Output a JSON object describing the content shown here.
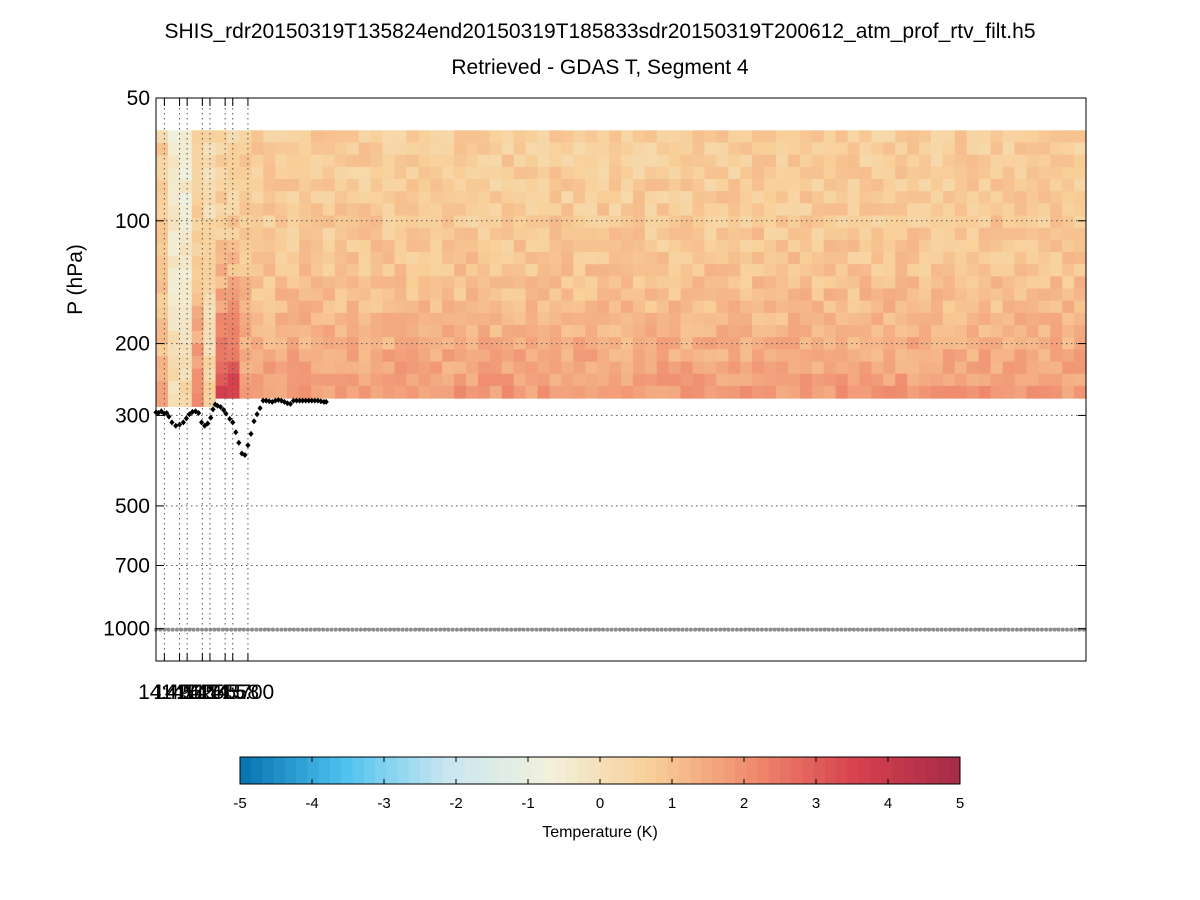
{
  "chart_data": {
    "type": "heatmap",
    "title": "SHIS_rdr20150319T135824end20150319T185833sdr20150319T200612_atm_prof_rtv_filt.h5",
    "subtitle": "Retrieved - GDAS T, Segment 4",
    "ylabel": "P (hPa)",
    "y_scale": "log",
    "y_reversed": true,
    "ylim": [
      50,
      1200
    ],
    "y_ticks": [
      50,
      100,
      200,
      300,
      500,
      700,
      1000
    ],
    "y_tick_labels": [
      "50",
      "100",
      "200",
      "300",
      "500",
      "700",
      "1000"
    ],
    "x_range_min": [
      887.9,
      1010.3
    ],
    "x_ticks_min": [
      889,
      891,
      892,
      894,
      895,
      897,
      898,
      900
    ],
    "x_tick_labels": [
      "14:49",
      "14:51",
      "14:52",
      "14:54",
      "14:55",
      "14:57",
      "14:58",
      "15:00"
    ],
    "grid": true,
    "colorbar": {
      "label": "Temperature (K)",
      "range": [
        -5,
        5
      ],
      "ticks": [
        -5,
        -4,
        -3,
        -2,
        -1,
        0,
        1,
        2,
        3,
        4,
        5
      ],
      "tick_labels": [
        "-5",
        "-4",
        "-3",
        "-2",
        "-1",
        "0",
        "1",
        "2",
        "3",
        "4",
        "5"
      ],
      "placement": "bottom",
      "colors": [
        "#0571b0",
        "#4dc1ee",
        "#c9e6f1",
        "#f1f1dc",
        "#f8cf98",
        "#ef8a6d",
        "#d6404e",
        "#a52b47"
      ]
    },
    "heatmap": {
      "pressure_top": 60,
      "pressure_levels_note": "field rows from 60 hPa to tropopause",
      "segments": [
        {
          "x_start_min": 887.9,
          "x_end_min": 889.6,
          "upper_k": 0.6,
          "lower_k": 1.4,
          "tropopause_hPa": 285
        },
        {
          "x_start_min": 889.6,
          "x_end_min": 892.0,
          "upper_k": -0.5,
          "lower_k": 0.3,
          "tropopause_hPa": 285
        },
        {
          "x_start_min": 892.0,
          "x_end_min": 894.2,
          "upper_k": 0.4,
          "lower_k": 2.5,
          "tropopause_hPa": 285
        },
        {
          "x_start_min": 894.2,
          "x_end_min": 896.5,
          "upper_k": 0.2,
          "lower_k": 0.6,
          "tropopause_hPa": 285
        },
        {
          "x_start_min": 896.5,
          "x_end_min": 898.6,
          "upper_k": 0.5,
          "lower_k": 3.6,
          "tropopause_hPa": 272
        },
        {
          "x_start_min": 898.6,
          "x_end_min": 1010.3,
          "upper_k": 0.7,
          "lower_k": 1.8,
          "tropopause_hPa": 272
        }
      ]
    },
    "series": [
      {
        "marker": "diamond",
        "color": "#000000",
        "x": [
          887.9,
          888.2,
          888.6,
          889.0,
          889.3,
          889.6,
          890.0,
          890.5,
          891.0,
          891.5,
          891.9,
          892.3,
          892.7,
          893.1,
          893.5,
          893.9,
          894.3,
          894.7,
          895.1,
          895.4,
          895.7,
          896.0,
          896.4,
          896.8,
          897.1,
          897.6,
          898.0,
          898.4,
          898.8,
          899.2,
          899.6,
          900.0,
          900.4,
          900.8,
          901.2,
          901.6,
          902.0,
          902.4,
          902.8,
          903.2,
          903.6,
          904.0,
          904.4,
          904.8,
          905.2,
          905.6,
          906.0,
          906.4,
          906.8,
          907.2,
          907.6,
          908.0,
          908.4,
          908.8,
          909.2,
          909.6,
          910.0,
          910.3
        ],
        "y": [
          295,
          296,
          293,
          297,
          296,
          302,
          312,
          318,
          316,
          312,
          305,
          298,
          294,
          293,
          296,
          312,
          318,
          314,
          304,
          290,
          282,
          284,
          286,
          291,
          297,
          306,
          312,
          330,
          350,
          372,
          375,
          355,
          333,
          310,
          298,
          288,
          276,
          276,
          277,
          278,
          276,
          275,
          276,
          278,
          280,
          281,
          276,
          276,
          276,
          276,
          276,
          276,
          276,
          276,
          276,
          277,
          278,
          278
        ]
      },
      {
        "marker": "dot",
        "color": "#8c8c8c",
        "values_hPa": 1005
      }
    ]
  }
}
